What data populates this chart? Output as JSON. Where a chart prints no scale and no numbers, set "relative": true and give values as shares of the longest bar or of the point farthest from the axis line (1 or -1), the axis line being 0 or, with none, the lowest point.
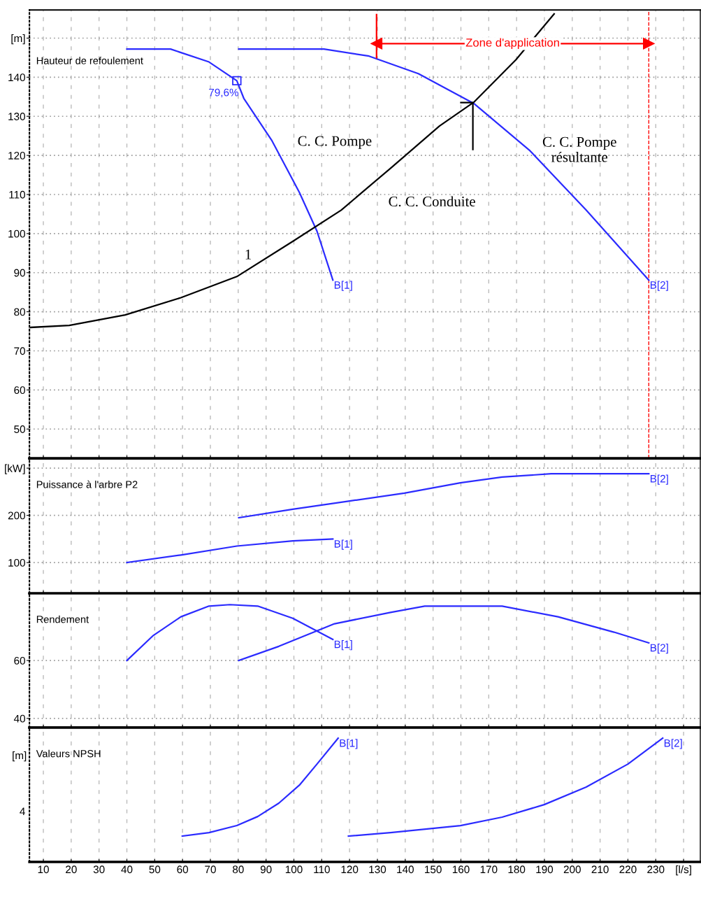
{
  "chart_data": [
    {
      "type": "line",
      "title": "Hauteur de refoulement",
      "xlim": [
        5,
        246
      ],
      "ylim": [
        42.5,
        157.2
      ],
      "tick_labels": "y",
      "grid": true,
      "yticks": [
        {
          "value": 150,
          "label": "[m]"
        },
        140,
        130,
        120,
        110,
        100,
        90,
        80,
        70,
        60,
        50
      ],
      "series": [
        {
          "color": "#2b2bff",
          "x": [
            40,
            55.7,
            69.5,
            79.5,
            82,
            92,
            102,
            108.3,
            114
          ],
          "values": [
            147.2,
            147.2,
            143.9,
            139.1,
            134.6,
            123.9,
            110.5,
            100.6,
            88.1
          ]
        },
        {
          "color": "#2b2bff",
          "x": [
            80.2,
            110.8,
            127,
            144.7,
            164.8,
            184.8,
            205,
            227.5
          ],
          "values": [
            147.2,
            147.2,
            145.4,
            140.9,
            133.2,
            121.2,
            106,
            88.1
          ]
        },
        {
          "color": "#000000",
          "x": [
            5.5,
            19.3,
            39.4,
            59.4,
            79.5,
            99.6,
            117,
            134.7,
            152.3,
            164.8,
            179.8,
            193.5
          ],
          "values": [
            76,
            76.5,
            79.2,
            83.6,
            89,
            98,
            106,
            116.7,
            127.5,
            133.7,
            144.5,
            156.2
          ]
        },
        {
          "color": "#000000",
          "x": [
            160,
            164.3,
            164.3
          ],
          "values": [
            133.5,
            133.5,
            121.5
          ]
        },
        {
          "type": "scatter",
          "marker": "square",
          "color": "#2b2bff",
          "x": [
            79.5
          ],
          "values": [
            139.1
          ]
        },
        {
          "color": "#ff0000",
          "marker": "triangle",
          "x": [
            129.7,
            227.5
          ],
          "values": [
            148.6,
            148.6
          ]
        },
        {
          "color": "#ff0000",
          "x": [
            129.7,
            129.7
          ],
          "values": [
            145,
            156
          ]
        }
      ],
      "ref_lines": [
        {
          "axis": "x",
          "value": 227.5,
          "color": "#ff0000",
          "line_style": "dashed"
        }
      ],
      "annotations": [
        {
          "text": "79,6%",
          "x": 79.5,
          "y": 139.1
        },
        {
          "text": "B[1]",
          "x": 114,
          "y": 88.1
        },
        {
          "text": "B[2]",
          "x": 227.5,
          "y": 88.1
        },
        {
          "text": "Zone d'application",
          "x": 178.6,
          "y": 148.6
        },
        "C. C. Pompe",
        "C. C. Pompe\nrésultante",
        "C. C. Conduite",
        "1"
      ]
    },
    {
      "type": "line",
      "title": "Puissance à l'arbre P2",
      "xlim": [
        5,
        246
      ],
      "ylim": [
        34.8,
        320.7
      ],
      "tick_labels": "y",
      "grid": true,
      "yticks": [
        {
          "value": 300,
          "label": "[kW]"
        },
        200,
        100
      ],
      "series": [
        {
          "color": "#2b2bff",
          "x": [
            40,
            59.4,
            79.5,
            99.6,
            114
          ],
          "values": [
            100,
            116,
            135,
            146,
            150
          ]
        },
        {
          "color": "#2b2bff",
          "x": [
            80.2,
            99.6,
            119.6,
            139.7,
            159.8,
            174.8,
            192.4,
            227.5
          ],
          "values": [
            195,
            213,
            230,
            247,
            269,
            281,
            288,
            288
          ]
        }
      ],
      "annotations": [
        {
          "text": "B[1]",
          "x": 114,
          "y": 150
        },
        {
          "text": "B[2]",
          "x": 227.5,
          "y": 288
        }
      ]
    },
    {
      "type": "line",
      "title": "Rendement",
      "xlim": [
        5,
        246
      ],
      "ylim": [
        36.8,
        83.2
      ],
      "tick_labels": "y",
      "grid": true,
      "yticks": [
        60,
        40
      ],
      "series": [
        {
          "color": "#2b2bff",
          "x": [
            40,
            49.3,
            59.4,
            69.5,
            77,
            87,
            99.6,
            114
          ],
          "values": [
            60,
            68.5,
            75.1,
            78.8,
            79.3,
            78.8,
            74.6,
            67.3
          ]
        },
        {
          "color": "#2b2bff",
          "x": [
            80.2,
            94.6,
            114.6,
            134.7,
            147,
            174.8,
            194.9,
            215,
            227.5
          ],
          "values": [
            60,
            64.9,
            72.7,
            76.6,
            78.8,
            78.8,
            75.1,
            69.8,
            66.1
          ]
        }
      ],
      "annotations": [
        {
          "text": "B[1]",
          "x": 114,
          "y": 67.3
        },
        {
          "text": "B[2]",
          "x": 227.5,
          "y": 66.1
        }
      ]
    },
    {
      "type": "line",
      "title": "Valeurs NPSH",
      "ylabel": "[m]",
      "relative": true,
      "xlim": [
        5,
        246
      ],
      "grid": true,
      "xticks": [
        10,
        20,
        30,
        40,
        50,
        60,
        70,
        80,
        90,
        100,
        110,
        120,
        130,
        140,
        150,
        160,
        170,
        180,
        190,
        200,
        210,
        220,
        230,
        {
          "value": 240,
          "label": "[l/s]"
        }
      ],
      "series": [
        {
          "color": "#2b2bff",
          "x": [
            59.9,
            69.5,
            79.5,
            87,
            94.6,
            102,
            108.3,
            115.9
          ],
          "values": [
            0.209,
            0.237,
            0.294,
            0.367,
            0.475,
            0.621,
            0.791,
            1
          ]
        },
        {
          "color": "#2b2bff",
          "x": [
            119.6,
            134.7,
            159.8,
            174.8,
            189.9,
            205,
            220,
            232.5
          ],
          "values": [
            0.209,
            0.237,
            0.294,
            0.362,
            0.463,
            0.605,
            0.791,
            1
          ]
        }
      ],
      "annotations": [
        {
          "text": "B[1]",
          "x": 115.9,
          "y": 1
        },
        {
          "text": "B[2]",
          "x": 232.5,
          "y": 1
        },
        "4"
      ]
    }
  ]
}
